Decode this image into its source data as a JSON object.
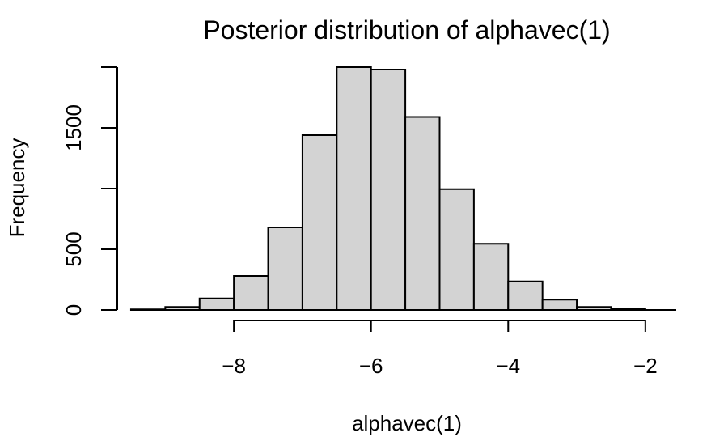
{
  "chart_data": {
    "type": "bar",
    "title": "Posterior distribution of alphavec(1)",
    "xlabel": "alphavec(1)",
    "ylabel": "Frequency",
    "bin_edges": [
      -9.5,
      -9.0,
      -8.5,
      -8.0,
      -7.5,
      -7.0,
      -6.5,
      -6.0,
      -5.5,
      -5.0,
      -4.5,
      -4.0,
      -3.5,
      -3.0,
      -2.5,
      -2.0
    ],
    "values": [
      5,
      25,
      95,
      280,
      680,
      1440,
      2000,
      1980,
      1590,
      995,
      545,
      235,
      85,
      25,
      8
    ],
    "x_ticks": [
      -8,
      -6,
      -4,
      -2
    ],
    "x_tick_labels": [
      "−8",
      "−6",
      "−4",
      "−2"
    ],
    "y_ticks": [
      0,
      500,
      1000,
      1500,
      2000
    ],
    "y_tick_labels": [
      "0",
      "500",
      "",
      "1500",
      ""
    ],
    "xlim": [
      -9.7,
      -1.55
    ],
    "ylim": [
      0,
      2000
    ],
    "grid": false,
    "colors": {
      "bar_fill": "#d3d3d3",
      "bar_stroke": "#000000"
    }
  }
}
